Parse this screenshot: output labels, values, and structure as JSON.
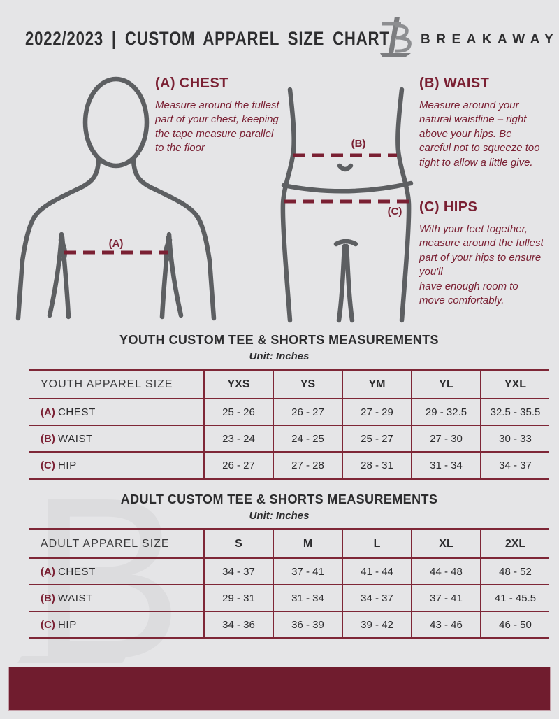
{
  "colors": {
    "background": "#e5e5e7",
    "accent_maroon": "#7a2033",
    "table_line_maroon": "#7e2737",
    "footer_bar_maroon": "#701c2e",
    "figure_gray": "#5d5f62",
    "text_dark": "#2c2c2e",
    "watermark_gray": "#dcdcde"
  },
  "header": {
    "title": "2022/2023 | CUSTOM APPAREL SIZE CHART",
    "brand": "BREAKAWAY",
    "logo_letter": "B"
  },
  "guide": {
    "chest_heading": "(A) CHEST",
    "chest_body": "Measure around the fullest part of your chest, keeping the tape measure parallel to the floor",
    "chest_marker": "(A)",
    "waist_heading": "(B) WAIST",
    "waist_body": "Measure around your natural waistline – right above your hips. Be careful not to squeeze too tight to allow a little give.",
    "waist_marker": "(B)",
    "hips_heading": "(C) HIPS",
    "hips_body": "With your feet together, measure around the fullest part of your hips to ensure you'll\nhave enough room to move comfortably.",
    "hips_marker": "(C)"
  },
  "youth_table": {
    "title": "YOUTH CUSTOM TEE & SHORTS MEASUREMENTS",
    "subtitle": "Unit: Inches",
    "size_header": "YOUTH APPAREL SIZE",
    "sizes": [
      "YXS",
      "YS",
      "YM",
      "YL",
      "YXL"
    ],
    "rows": [
      {
        "prefix": "(A)",
        "label": "CHEST",
        "values": [
          "25 - 26",
          "26 - 27",
          "27 - 29",
          "29 - 32.5",
          "32.5 - 35.5"
        ]
      },
      {
        "prefix": "(B)",
        "label": "WAIST",
        "values": [
          "23 - 24",
          "24 - 25",
          "25 - 27",
          "27 - 30",
          "30 - 33"
        ]
      },
      {
        "prefix": "(C)",
        "label": "HIP",
        "values": [
          "26 - 27",
          "27 - 28",
          "28 - 31",
          "31 - 34",
          "34 - 37"
        ]
      }
    ]
  },
  "adult_table": {
    "title": "ADULT CUSTOM TEE & SHORTS MEASUREMENTS",
    "subtitle": "Unit: Inches",
    "size_header": "ADULT APPAREL SIZE",
    "sizes": [
      "S",
      "M",
      "L",
      "XL",
      "2XL"
    ],
    "rows": [
      {
        "prefix": "(A)",
        "label": "CHEST",
        "values": [
          "34 - 37",
          "37 - 41",
          "41 - 44",
          "44 - 48",
          "48 - 52"
        ]
      },
      {
        "prefix": "(B)",
        "label": "WAIST",
        "values": [
          "29 - 31",
          "31 - 34",
          "34 - 37",
          "37 - 41",
          "41 - 45.5"
        ]
      },
      {
        "prefix": "(C)",
        "label": "HIP",
        "values": [
          "34 - 36",
          "36 - 39",
          "39 - 42",
          "43 - 46",
          "46 - 50"
        ]
      }
    ]
  },
  "watermark_letter": "B"
}
